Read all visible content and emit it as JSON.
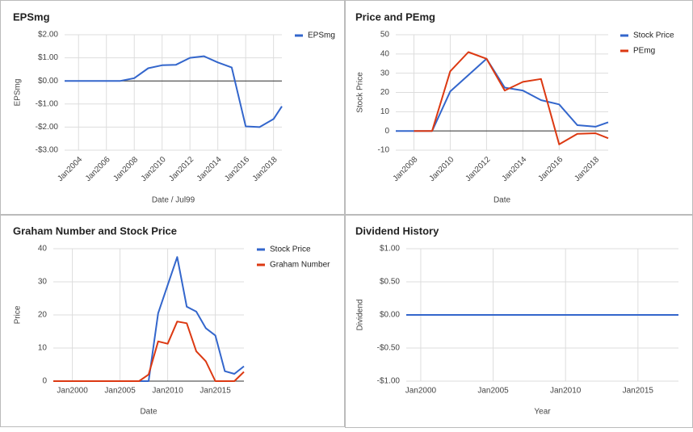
{
  "chart_data": [
    {
      "type": "line",
      "title": "EPSmg",
      "x_label": "Date / Jul99",
      "y_label": "EPSmg",
      "x": [
        2003,
        2004,
        2005,
        2006,
        2007,
        2008,
        2009,
        2010,
        2011,
        2012,
        2013,
        2014,
        2015,
        2016,
        2017,
        2018,
        2018.6
      ],
      "series": [
        {
          "name": "EPSmg",
          "color": "#3366cc",
          "values": [
            0,
            0,
            0,
            0,
            0,
            0.12,
            0.55,
            0.68,
            0.7,
            1.0,
            1.07,
            0.8,
            0.58,
            -1.97,
            -2.0,
            -1.65,
            -1.1
          ]
        }
      ],
      "xlim": [
        2003,
        2018.6
      ],
      "xticks": [
        {
          "value": 2004,
          "label": "Jan2004"
        },
        {
          "value": 2006,
          "label": "Jan2006"
        },
        {
          "value": 2008,
          "label": "Jan2008"
        },
        {
          "value": 2010,
          "label": "Jan2010"
        },
        {
          "value": 2012,
          "label": "Jan2012"
        },
        {
          "value": 2014,
          "label": "Jan2014"
        },
        {
          "value": 2016,
          "label": "Jan2016"
        },
        {
          "value": 2018,
          "label": "Jan2018"
        }
      ],
      "ylim": [
        -3,
        2
      ],
      "yticks": [
        {
          "value": 2,
          "label": "$2.00"
        },
        {
          "value": 1,
          "label": "$1.00"
        },
        {
          "value": 0,
          "label": "$0.00"
        },
        {
          "value": -1,
          "label": "-$1.00"
        },
        {
          "value": -2,
          "label": "-$2.00"
        },
        {
          "value": -3,
          "label": "-$3.00"
        }
      ],
      "grid": true,
      "legend": "right"
    },
    {
      "type": "line",
      "title": "Price and PEmg",
      "x_label": "Date",
      "y_label": "Stock Price",
      "x": [
        2007,
        2008,
        2009,
        2010,
        2011,
        2012,
        2013,
        2014,
        2015,
        2016,
        2017,
        2018,
        2018.7
      ],
      "series": [
        {
          "name": "Stock Price",
          "color": "#3366cc",
          "values": [
            0,
            0,
            0,
            20.5,
            29,
            37.5,
            22.5,
            21,
            16,
            13.8,
            3,
            2.2,
            4.5
          ]
        },
        {
          "name": "PEmg",
          "color": "#dc3912",
          "values": [
            null,
            0,
            0,
            31,
            41,
            37.5,
            21,
            25.5,
            27,
            -7,
            -1.5,
            -1.2,
            -3.8
          ]
        }
      ],
      "xlim": [
        2007,
        2018.7
      ],
      "xticks": [
        {
          "value": 2008,
          "label": "Jan2008"
        },
        {
          "value": 2010,
          "label": "Jan2010"
        },
        {
          "value": 2012,
          "label": "Jan2012"
        },
        {
          "value": 2014,
          "label": "Jan2014"
        },
        {
          "value": 2016,
          "label": "Jan2016"
        },
        {
          "value": 2018,
          "label": "Jan2018"
        }
      ],
      "ylim": [
        -10,
        50
      ],
      "yticks": [
        50,
        40,
        30,
        20,
        10,
        0,
        -10
      ],
      "grid": true,
      "legend": "right"
    },
    {
      "type": "line",
      "title": "Graham Number and Stock Price",
      "x_label": "Date",
      "y_label": "Price",
      "x": [
        1998,
        2007,
        2008,
        2009,
        2010,
        2011,
        2012,
        2013,
        2014,
        2015,
        2016,
        2017,
        2018
      ],
      "series": [
        {
          "name": "Stock Price",
          "color": "#3366cc",
          "values": [
            0,
            0,
            0,
            20.5,
            29,
            37.5,
            22.5,
            21,
            16,
            13.8,
            3,
            2.2,
            4.5
          ]
        },
        {
          "name": "Graham Number",
          "color": "#dc3912",
          "values": [
            0,
            0,
            2,
            12,
            11.3,
            18,
            17.5,
            9,
            6,
            0,
            0,
            0,
            2.8
          ]
        }
      ],
      "xlim": [
        1998,
        2018
      ],
      "xticks": [
        {
          "value": 2000,
          "label": "Jan2000"
        },
        {
          "value": 2005,
          "label": "Jan2005"
        },
        {
          "value": 2010,
          "label": "Jan2010"
        },
        {
          "value": 2015,
          "label": "Jan2015"
        }
      ],
      "ylim": [
        0,
        40
      ],
      "yticks": [
        40,
        30,
        20,
        10,
        0
      ],
      "grid": true,
      "legend": "right"
    },
    {
      "type": "line",
      "title": "Dividend History",
      "x_label": "Year",
      "y_label": "Dividend",
      "x": [
        1999,
        2017.8
      ],
      "series": [
        {
          "color": "#3366cc",
          "values": [
            0,
            0
          ]
        }
      ],
      "xlim": [
        1999,
        2017.8
      ],
      "xticks": [
        {
          "value": 2000,
          "label": "Jan2000"
        },
        {
          "value": 2005,
          "label": "Jan2005"
        },
        {
          "value": 2010,
          "label": "Jan2010"
        },
        {
          "value": 2015,
          "label": "Jan2015"
        }
      ],
      "ylim": [
        -1,
        1
      ],
      "yticks": [
        {
          "value": 1,
          "label": "$1.00"
        },
        {
          "value": 0.5,
          "label": "$0.50"
        },
        {
          "value": 0,
          "label": "$0.00"
        },
        {
          "value": -0.5,
          "label": "-$0.50"
        },
        {
          "value": -1,
          "label": "-$1.00"
        }
      ],
      "grid": true
    }
  ]
}
